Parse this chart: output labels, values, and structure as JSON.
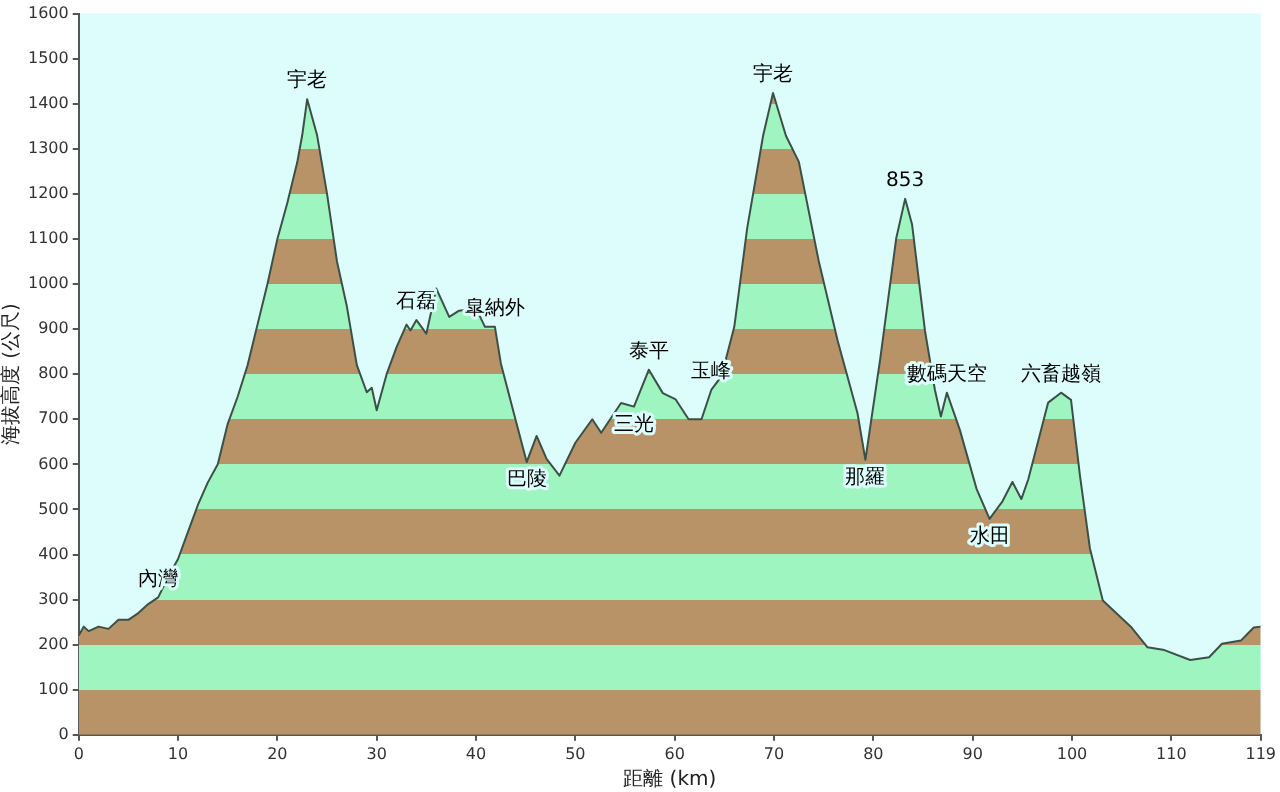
{
  "chart_data": {
    "type": "area",
    "xlabel": "距離 (km)",
    "ylabel": "海拔高度 (公尺)",
    "x": [
      0,
      0.5,
      1,
      2,
      3,
      4,
      5,
      6,
      7,
      8,
      9,
      10,
      11,
      12,
      13,
      14,
      15,
      16,
      17,
      18,
      19,
      20,
      21,
      22,
      22.5,
      23,
      24,
      25,
      26,
      27,
      28,
      29,
      29.5,
      30,
      31,
      32,
      33,
      33.4,
      34,
      35,
      36,
      37.3,
      38.3,
      40,
      40.9,
      41.9,
      42.5,
      43.8,
      45.1,
      46.1,
      47.1,
      48.4,
      50,
      51.7,
      52.6,
      54.6,
      55.9,
      57.4,
      58.8,
      60.1,
      61.4,
      62.7,
      63.7,
      64.7,
      66,
      67.3,
      68.9,
      69.9,
      71.2,
      72.5,
      74.5,
      76.4,
      78.4,
      79.2,
      80.7,
      82.3,
      83.2,
      83.9,
      85.2,
      86.2,
      86.8,
      87.4,
      88.7,
      90.4,
      91.7,
      93,
      94,
      94.9,
      95.6,
      97.6,
      98.9,
      99.9,
      100.8,
      101.8,
      103.1,
      106,
      107.6,
      109.3,
      111.9,
      113.8,
      115.1,
      117,
      118.3,
      119
    ],
    "series": [
      {
        "color": "#9ef5c0",
        "values": [
          220,
          240,
          230,
          240,
          235,
          255,
          255,
          270,
          290,
          305,
          350,
          390,
          450,
          510,
          560,
          600,
          690,
          750,
          820,
          910,
          1000,
          1100,
          1180,
          1270,
          1330,
          1410,
          1330,
          1200,
          1050,
          950,
          820,
          760,
          770,
          720,
          800,
          860,
          910,
          897,
          920,
          890,
          990,
          927,
          941,
          946,
          905,
          905,
          824,
          714,
          605,
          663,
          612,
          575,
          648,
          700,
          670,
          736,
          728,
          810,
          758,
          744,
          700,
          700,
          766,
          795,
          905,
          1124,
          1329,
          1424,
          1329,
          1271,
          1051,
          875,
          714,
          610,
          835,
          1101,
          1189,
          1132,
          896,
          765,
          706,
          759,
          677,
          545,
          479,
          518,
          561,
          523,
          567,
          737,
          759,
          743,
          575,
          414,
          298,
          238,
          194,
          188,
          166,
          172,
          202,
          209,
          238,
          240
        ]
      }
    ],
    "xlim": [
      0,
      119
    ],
    "xticks": [
      0,
      10,
      20,
      30,
      40,
      50,
      60,
      70,
      80,
      90,
      100,
      110,
      119
    ],
    "ylim": [
      0,
      1600
    ],
    "yticks": [
      0,
      100,
      200,
      300,
      400,
      500,
      600,
      700,
      800,
      900,
      1000,
      1100,
      1200,
      1300,
      1400,
      1500,
      1600
    ],
    "annotations": [
      {
        "text": "宇老",
        "x": 23,
        "y": 1410
      },
      {
        "text": "石磊",
        "x": 34,
        "y": 920
      },
      {
        "text": "皐納外",
        "x": 41.9,
        "y": 905
      },
      {
        "text": "巴陵",
        "x": 45.1,
        "y": 605
      },
      {
        "text": "三光",
        "x": 55.9,
        "y": 728
      },
      {
        "text": "泰平",
        "x": 57.4,
        "y": 810
      },
      {
        "text": "玉峰",
        "x": 63.7,
        "y": 766
      },
      {
        "text": "宇老",
        "x": 69.9,
        "y": 1424
      },
      {
        "text": "那羅",
        "x": 79.2,
        "y": 610
      },
      {
        "text": "853",
        "x": 83.2,
        "y": 1189
      },
      {
        "text": "數碼天空",
        "x": 87.4,
        "y": 759
      },
      {
        "text": "水田",
        "x": 91.7,
        "y": 479
      },
      {
        "text": "六畜越嶺",
        "x": 98.9,
        "y": 759
      },
      {
        "text": "內灣",
        "x": 8,
        "y": 305
      }
    ]
  }
}
